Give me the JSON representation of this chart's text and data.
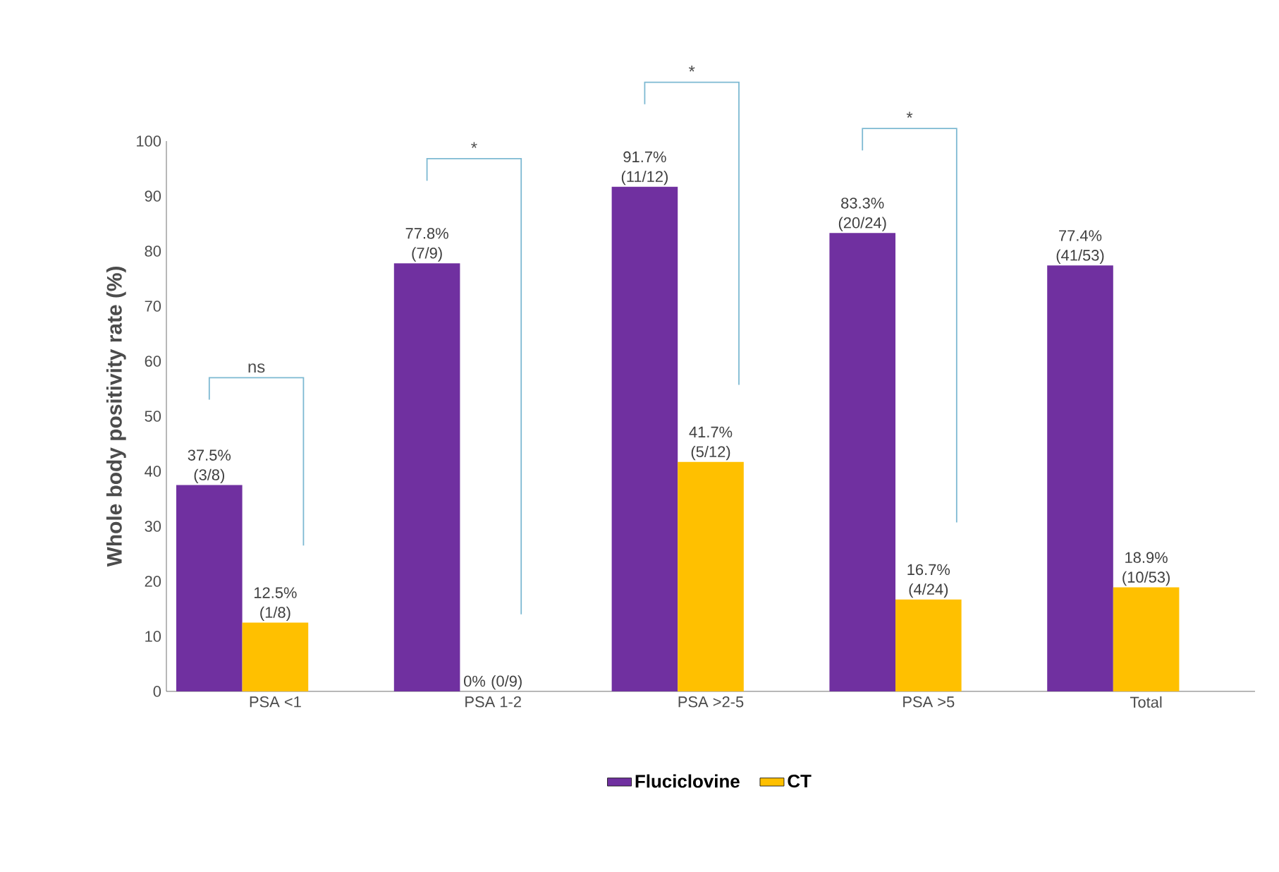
{
  "chart_data": {
    "type": "bar",
    "ylabel": "Whole body positivity rate (%)",
    "categories": [
      "PSA <1",
      "PSA 1-2",
      "PSA >2-5",
      "PSA >5",
      "Total"
    ],
    "series": [
      {
        "name": "Fluciclovine",
        "color": "#7030a0",
        "values": [
          37.5,
          77.8,
          91.7,
          83.3,
          77.4
        ],
        "value_labels": [
          "37.5% (3/8)",
          "77.8% (7/9)",
          "91.7% (11/12)",
          "83.3% (20/24)",
          "77.4% (41/53)"
        ]
      },
      {
        "name": "CT",
        "color": "#ffc000",
        "values": [
          12.5,
          0,
          41.7,
          16.7,
          18.9
        ],
        "value_labels": [
          "12.5% (1/8)",
          "0% (0/9)",
          "41.7% (5/12)",
          "16.7% (4/24)",
          "18.9% (10/53)"
        ]
      }
    ],
    "ylim": [
      0,
      100
    ],
    "yticks": [
      0,
      10,
      20,
      30,
      40,
      50,
      60,
      70,
      80,
      90,
      100
    ],
    "annotations": [
      "ns",
      "*",
      "*",
      "*"
    ],
    "legend": "bottom",
    "grid": false
  }
}
